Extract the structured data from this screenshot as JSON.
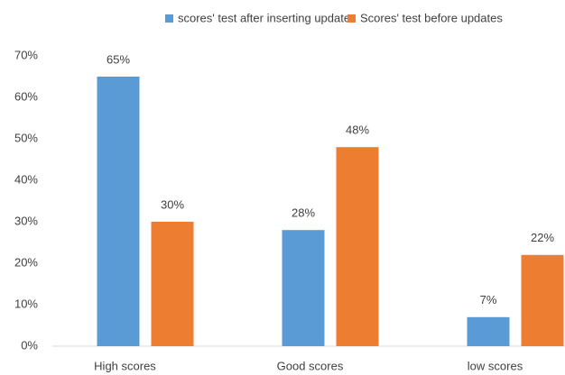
{
  "chart_data": {
    "type": "bar",
    "categories": [
      "High scores",
      "Good scores",
      "low scores"
    ],
    "series": [
      {
        "name": "scores' test after inserting updates",
        "color": "#5b9bd5",
        "values": [
          65,
          28,
          7
        ],
        "value_labels": [
          "65%",
          "28%",
          "7%"
        ]
      },
      {
        "name": "Scores' test before updates",
        "color": "#ed7d31",
        "values": [
          30,
          48,
          22
        ],
        "value_labels": [
          "30%",
          "48%",
          "22%"
        ]
      }
    ],
    "ylim": [
      0,
      70
    ],
    "yticks": [
      {
        "value": 0,
        "label": "0%"
      },
      {
        "value": 10,
        "label": "10%"
      },
      {
        "value": 20,
        "label": "20%"
      },
      {
        "value": 30,
        "label": "30%"
      },
      {
        "value": 40,
        "label": "40%"
      },
      {
        "value": 50,
        "label": "50%"
      },
      {
        "value": 60,
        "label": "60%"
      },
      {
        "value": 70,
        "label": "70%"
      }
    ],
    "grid": false,
    "legend": "top"
  }
}
